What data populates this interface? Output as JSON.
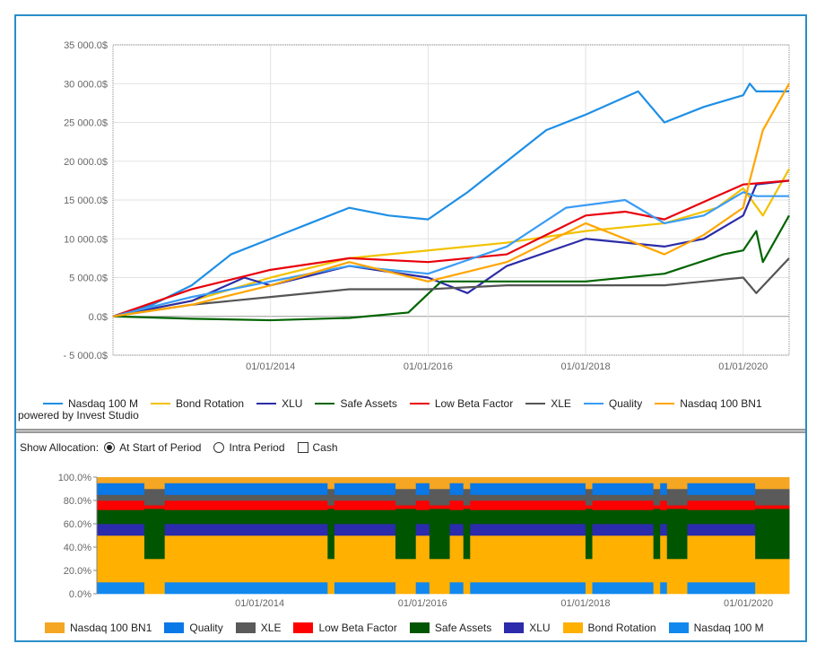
{
  "chart_data": [
    {
      "type": "line",
      "yticks": [
        "35 000.0$",
        "30 000.0$",
        "25 000.0$",
        "20 000.0$",
        "15 000.0$",
        "10 000.0$",
        "5 000.0$",
        "0.0$",
        "- 5 000.0$"
      ],
      "ytick_values": [
        35000,
        30000,
        25000,
        20000,
        15000,
        10000,
        5000,
        0,
        -5000
      ],
      "ylim": [
        -5000,
        35000
      ],
      "xlim": [
        "2012-01",
        "2020-08"
      ],
      "xticks": [
        {
          "date": "2014-01",
          "label": "01/01/2014"
        },
        {
          "date": "2016-01",
          "label": "01/01/2016"
        },
        {
          "date": "2018-01",
          "label": "01/01/2018"
        },
        {
          "date": "2020-01",
          "label": "01/01/2020"
        }
      ],
      "grid": true,
      "legend_position": "bottom",
      "series": [
        {
          "name": "Nasdaq 100 M",
          "color": "#1e8fe6",
          "points": [
            [
              "2012-01",
              0
            ],
            [
              "2012-07",
              1500
            ],
            [
              "2013-01",
              4000
            ],
            [
              "2013-07",
              8000
            ],
            [
              "2014-01",
              10000
            ],
            [
              "2014-07",
              12000
            ],
            [
              "2015-01",
              14000
            ],
            [
              "2015-07",
              13000
            ],
            [
              "2016-01",
              12500
            ],
            [
              "2016-07",
              16000
            ],
            [
              "2017-01",
              20000
            ],
            [
              "2017-07",
              24000
            ],
            [
              "2018-01",
              26000
            ],
            [
              "2018-09",
              29000
            ],
            [
              "2019-01",
              25000
            ],
            [
              "2019-07",
              27000
            ],
            [
              "2020-01",
              28500
            ],
            [
              "2020-02",
              30000
            ],
            [
              "2020-03",
              29000
            ],
            [
              "2020-08",
              29000
            ]
          ]
        },
        {
          "name": "Bond Rotation",
          "color": "#f2c200",
          "points": [
            [
              "2012-01",
              0
            ],
            [
              "2013-01",
              2000
            ],
            [
              "2014-01",
              5000
            ],
            [
              "2015-01",
              7500
            ],
            [
              "2016-01",
              8500
            ],
            [
              "2017-01",
              9500
            ],
            [
              "2018-01",
              11000
            ],
            [
              "2019-01",
              12000
            ],
            [
              "2019-09",
              14000
            ],
            [
              "2020-01",
              16500
            ],
            [
              "2020-04",
              13000
            ],
            [
              "2020-08",
              19000
            ]
          ]
        },
        {
          "name": "XLU",
          "color": "#2c2ca8",
          "points": [
            [
              "2012-01",
              0
            ],
            [
              "2013-01",
              2000
            ],
            [
              "2013-09",
              5000
            ],
            [
              "2014-01",
              4000
            ],
            [
              "2015-01",
              6500
            ],
            [
              "2016-01",
              5000
            ],
            [
              "2016-07",
              3000
            ],
            [
              "2017-01",
              6500
            ],
            [
              "2018-01",
              10000
            ],
            [
              "2019-01",
              9000
            ],
            [
              "2019-07",
              10000
            ],
            [
              "2020-01",
              13000
            ],
            [
              "2020-03",
              17000
            ],
            [
              "2020-08",
              17500
            ]
          ]
        },
        {
          "name": "Safe Assets",
          "color": "#006400",
          "points": [
            [
              "2012-01",
              0
            ],
            [
              "2013-01",
              -300
            ],
            [
              "2014-01",
              -500
            ],
            [
              "2015-01",
              -200
            ],
            [
              "2015-10",
              500
            ],
            [
              "2016-03",
              4500
            ],
            [
              "2017-01",
              4500
            ],
            [
              "2018-01",
              4500
            ],
            [
              "2019-01",
              5500
            ],
            [
              "2019-10",
              8000
            ],
            [
              "2020-01",
              8500
            ],
            [
              "2020-03",
              11000
            ],
            [
              "2020-04",
              7000
            ],
            [
              "2020-08",
              13000
            ]
          ]
        },
        {
          "name": "Low Beta Factor",
          "color": "#e8000b",
          "points": [
            [
              "2012-01",
              0
            ],
            [
              "2013-01",
              3500
            ],
            [
              "2014-01",
              6000
            ],
            [
              "2015-01",
              7500
            ],
            [
              "2016-01",
              7000
            ],
            [
              "2017-01",
              8000
            ],
            [
              "2018-01",
              13000
            ],
            [
              "2018-07",
              13500
            ],
            [
              "2019-01",
              12500
            ],
            [
              "2019-09",
              15500
            ],
            [
              "2020-01",
              17000
            ],
            [
              "2020-08",
              17500
            ]
          ]
        },
        {
          "name": "XLE",
          "color": "#555555",
          "points": [
            [
              "2012-01",
              0
            ],
            [
              "2013-01",
              1500
            ],
            [
              "2014-01",
              2500
            ],
            [
              "2015-01",
              3500
            ],
            [
              "2016-01",
              3500
            ],
            [
              "2017-01",
              4000
            ],
            [
              "2018-01",
              4000
            ],
            [
              "2019-01",
              4000
            ],
            [
              "2020-01",
              5000
            ],
            [
              "2020-03",
              3000
            ],
            [
              "2020-08",
              7500
            ]
          ]
        },
        {
          "name": "Quality",
          "color": "#3a9cf5",
          "points": [
            [
              "2012-01",
              0
            ],
            [
              "2013-01",
              2500
            ],
            [
              "2014-01",
              4500
            ],
            [
              "2015-01",
              6500
            ],
            [
              "2016-01",
              5500
            ],
            [
              "2017-01",
              9000
            ],
            [
              "2017-10",
              14000
            ],
            [
              "2018-07",
              15000
            ],
            [
              "2019-01",
              12000
            ],
            [
              "2019-07",
              13000
            ],
            [
              "2020-01",
              16000
            ],
            [
              "2020-03",
              15500
            ],
            [
              "2020-08",
              15500
            ]
          ]
        },
        {
          "name": "Nasdaq 100 BN1",
          "color": "#ffa500",
          "points": [
            [
              "2012-01",
              0
            ],
            [
              "2013-01",
              1500
            ],
            [
              "2014-01",
              4000
            ],
            [
              "2015-01",
              7000
            ],
            [
              "2016-01",
              4500
            ],
            [
              "2017-01",
              7000
            ],
            [
              "2018-01",
              12000
            ],
            [
              "2019-01",
              8000
            ],
            [
              "2019-07",
              10500
            ],
            [
              "2020-01",
              14000
            ],
            [
              "2020-02",
              17500
            ],
            [
              "2020-04",
              24000
            ],
            [
              "2020-08",
              30000
            ]
          ]
        }
      ]
    },
    {
      "type": "area",
      "stacked": "percent",
      "yticks": [
        "100.0%",
        "80.0%",
        "60.0%",
        "40.0%",
        "20.0%",
        "0.0%"
      ],
      "ytick_values": [
        100,
        80,
        60,
        40,
        20,
        0
      ],
      "ylim": [
        0,
        100
      ],
      "xlim": [
        "2012-01",
        "2020-07"
      ],
      "xticks": [
        {
          "date": "2014-01",
          "label": "01/01/2014"
        },
        {
          "date": "2016-01",
          "label": "01/01/2016"
        },
        {
          "date": "2018-01",
          "label": "01/01/2018"
        },
        {
          "date": "2020-01",
          "label": "01/01/2020"
        }
      ],
      "legend_position": "bottom",
      "stack_order": [
        "Nasdaq 100 M",
        "Bond Rotation",
        "XLU",
        "Safe Assets",
        "Low Beta Factor",
        "XLE",
        "Quality",
        "Nasdaq 100 BN1"
      ],
      "legend": [
        {
          "name": "Nasdaq 100 BN1",
          "color": "#f5a623"
        },
        {
          "name": "Quality",
          "color": "#0a78e6"
        },
        {
          "name": "XLE",
          "color": "#5a5a5a"
        },
        {
          "name": "Low Beta Factor",
          "color": "#ff0000"
        },
        {
          "name": "Safe Assets",
          "color": "#005500"
        },
        {
          "name": "XLU",
          "color": "#2b2bab"
        },
        {
          "name": "Bond Rotation",
          "color": "#ffb000"
        },
        {
          "name": "Nasdaq 100 M",
          "color": "#1188ee"
        }
      ],
      "stack_colors": [
        "#1188ee",
        "#ffb000",
        "#2b2bab",
        "#005500",
        "#ff0000",
        "#5a5a5a",
        "#0a78e6",
        "#f5a623"
      ],
      "periods": [
        {
          "from": "2012-01",
          "to": "2012-08",
          "weights": [
            10,
            40,
            10,
            12,
            8,
            5,
            10,
            5
          ]
        },
        {
          "from": "2012-08",
          "to": "2012-11",
          "weights": [
            0,
            30,
            0,
            43,
            3,
            14,
            0,
            10
          ]
        },
        {
          "from": "2012-11",
          "to": "2014-11",
          "weights": [
            10,
            40,
            10,
            12,
            8,
            5,
            10,
            5
          ]
        },
        {
          "from": "2014-11",
          "to": "2014-12",
          "weights": [
            0,
            30,
            0,
            43,
            3,
            14,
            0,
            10
          ]
        },
        {
          "from": "2014-12",
          "to": "2015-09",
          "weights": [
            10,
            40,
            10,
            12,
            8,
            5,
            10,
            5
          ]
        },
        {
          "from": "2015-09",
          "to": "2015-12",
          "weights": [
            0,
            30,
            0,
            43,
            3,
            14,
            0,
            10
          ]
        },
        {
          "from": "2015-12",
          "to": "2016-02",
          "weights": [
            10,
            40,
            10,
            12,
            8,
            5,
            10,
            5
          ]
        },
        {
          "from": "2016-02",
          "to": "2016-05",
          "weights": [
            0,
            30,
            0,
            43,
            3,
            14,
            0,
            10
          ]
        },
        {
          "from": "2016-05",
          "to": "2016-07",
          "weights": [
            10,
            40,
            10,
            12,
            8,
            5,
            10,
            5
          ]
        },
        {
          "from": "2016-07",
          "to": "2016-08",
          "weights": [
            0,
            30,
            0,
            43,
            3,
            14,
            0,
            10
          ]
        },
        {
          "from": "2016-08",
          "to": "2018-01",
          "weights": [
            10,
            40,
            10,
            12,
            8,
            5,
            10,
            5
          ]
        },
        {
          "from": "2018-01",
          "to": "2018-02",
          "weights": [
            0,
            30,
            0,
            43,
            3,
            14,
            0,
            10
          ]
        },
        {
          "from": "2018-02",
          "to": "2018-11",
          "weights": [
            10,
            40,
            10,
            12,
            8,
            5,
            10,
            5
          ]
        },
        {
          "from": "2018-11",
          "to": "2018-12",
          "weights": [
            0,
            30,
            0,
            43,
            3,
            14,
            0,
            10
          ]
        },
        {
          "from": "2018-12",
          "to": "2019-01",
          "weights": [
            10,
            40,
            10,
            12,
            8,
            5,
            10,
            5
          ]
        },
        {
          "from": "2019-01",
          "to": "2019-04",
          "weights": [
            0,
            30,
            0,
            43,
            3,
            14,
            0,
            10
          ]
        },
        {
          "from": "2019-04",
          "to": "2020-02",
          "weights": [
            10,
            40,
            10,
            12,
            8,
            5,
            10,
            5
          ]
        },
        {
          "from": "2020-02",
          "to": "2020-07",
          "weights": [
            0,
            30,
            0,
            43,
            3,
            14,
            0,
            10
          ]
        }
      ]
    }
  ],
  "powered_by": "powered by Invest Studio",
  "controls": {
    "label": "Show Allocation:",
    "options": [
      {
        "label": "At Start of Period",
        "selected": true
      },
      {
        "label": "Intra Period",
        "selected": false
      }
    ],
    "cash": {
      "label": "Cash",
      "checked": false
    }
  }
}
